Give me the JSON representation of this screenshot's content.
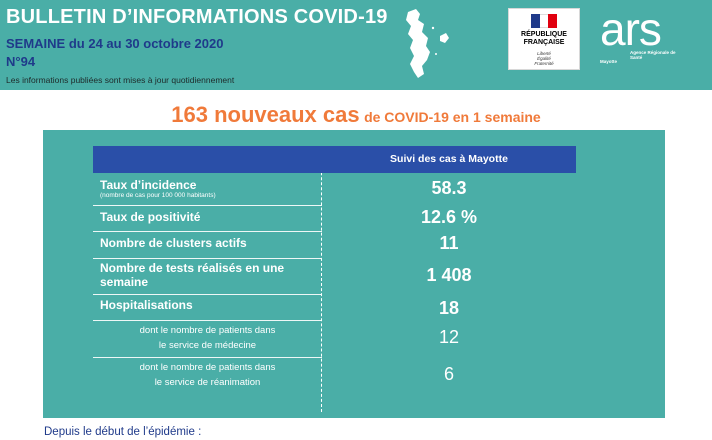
{
  "header": {
    "title": "BULLETIN D’INFORMATIONS COVID-19",
    "week": "SEMAINE du 24 au 30 octobre 2020",
    "number": "N°94",
    "note": "Les informations publiées sont mises à jour quotidiennement",
    "republique_logo": {
      "line1": "RÉPUBLIQUE",
      "line2": "FRANÇAISE",
      "motto1": "Liberté",
      "motto2": "Égalité",
      "motto3": "Fraternité"
    },
    "ars_logo": {
      "word": "ars",
      "subtitle": "Agence Régionale de Santé",
      "region": "Mayotte"
    }
  },
  "headline": {
    "big": "163 nouveaux cas",
    "small": "de COVID-19 en 1 semaine"
  },
  "table": {
    "column_header": "Suivi des cas à Mayotte",
    "rows": [
      {
        "label": "Taux d’incidence",
        "sub": "(nombre de cas pour 100 000 habitants)",
        "value": "58.3"
      },
      {
        "label": "Taux de positivité",
        "value": "12.6 %"
      },
      {
        "label": "Nombre de clusters actifs",
        "value": "11"
      },
      {
        "label_line1": "Nombre de tests réalisés en une",
        "label_line2": "semaine",
        "value": "1 408"
      },
      {
        "label": "Hospitalisations",
        "value": "18"
      },
      {
        "label_line1": "dont le nombre de patients dans",
        "label_line2": "le service de médecine",
        "value": "12"
      },
      {
        "label_line1": "dont le nombre de patients dans",
        "label_line2": "le service de réanimation",
        "value": "6"
      }
    ]
  },
  "footer": "Depuis le début de l’épidémie :",
  "colors": {
    "teal": "#4aaea7",
    "navy": "#2a4fa8",
    "orange": "#f07a3a",
    "dark_blue": "#1f3a8a"
  }
}
